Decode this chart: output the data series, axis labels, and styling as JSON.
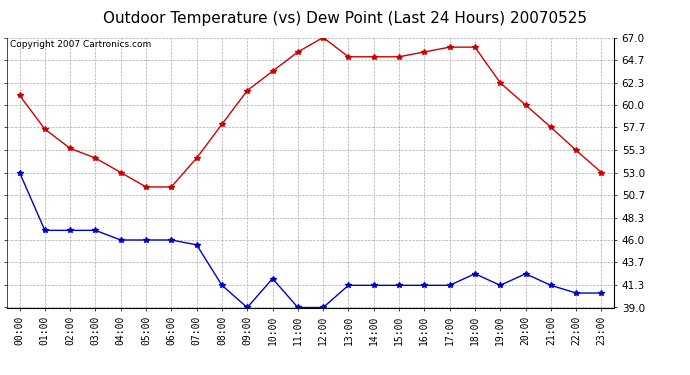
{
  "title": "Outdoor Temperature (vs) Dew Point (Last 24 Hours) 20070525",
  "copyright_text": "Copyright 2007 Cartronics.com",
  "hours": [
    "00:00",
    "01:00",
    "02:00",
    "03:00",
    "04:00",
    "05:00",
    "06:00",
    "07:00",
    "08:00",
    "09:00",
    "10:00",
    "11:00",
    "12:00",
    "13:00",
    "14:00",
    "15:00",
    "16:00",
    "17:00",
    "18:00",
    "19:00",
    "20:00",
    "21:00",
    "22:00",
    "23:00"
  ],
  "temp": [
    53.0,
    47.0,
    47.0,
    47.0,
    46.0,
    46.0,
    46.0,
    45.5,
    41.3,
    39.0,
    42.0,
    39.0,
    39.0,
    41.3,
    41.3,
    41.3,
    41.3,
    41.3,
    42.5,
    41.3,
    42.5,
    41.3,
    40.5,
    40.5
  ],
  "dewpoint": [
    61.0,
    57.5,
    55.5,
    54.5,
    53.0,
    51.5,
    51.5,
    54.5,
    58.0,
    61.5,
    63.5,
    65.5,
    67.0,
    65.0,
    65.0,
    65.0,
    65.5,
    66.0,
    66.0,
    62.3,
    60.0,
    57.7,
    55.3,
    53.0
  ],
  "temp_color": "#0000cc",
  "dewpoint_color": "#cc0000",
  "bg_color": "#ffffff",
  "plot_bg_color": "#ffffff",
  "grid_color": "#aaaaaa",
  "ylim_min": 39.0,
  "ylim_max": 67.0,
  "yticks": [
    39.0,
    41.3,
    43.7,
    46.0,
    48.3,
    50.7,
    53.0,
    55.3,
    57.7,
    60.0,
    62.3,
    64.7,
    67.0
  ],
  "title_fontsize": 11,
  "copyright_fontsize": 6.5
}
